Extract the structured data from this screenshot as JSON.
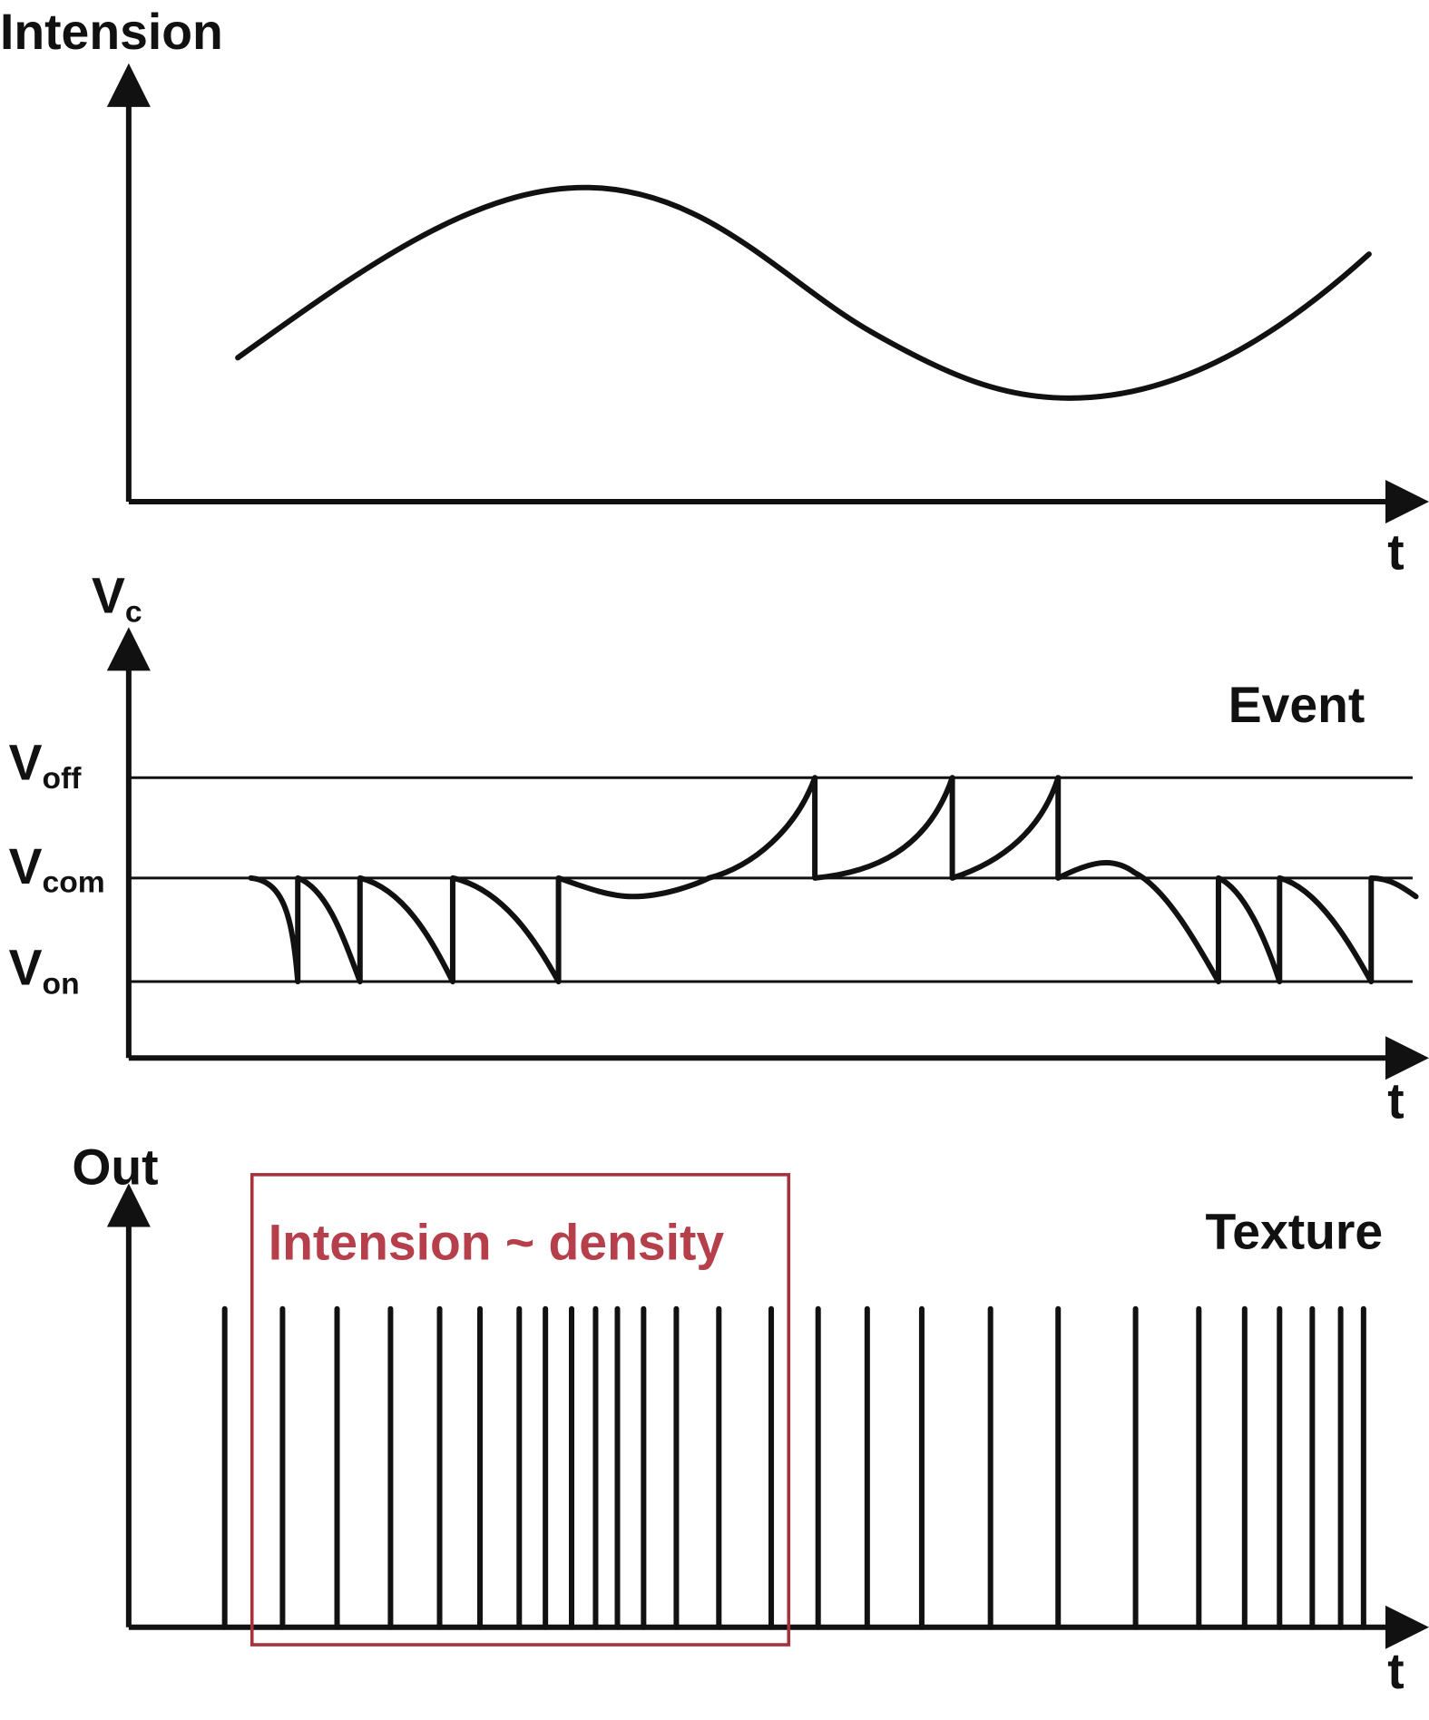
{
  "panels": [
    {
      "y_label": "Intension",
      "x_label": "t"
    },
    {
      "y_label": {
        "main": "V",
        "sub": "c"
      },
      "x_label": "t",
      "title": "Event",
      "levels": [
        {
          "main": "V",
          "sub": "off"
        },
        {
          "main": "V",
          "sub": "com"
        },
        {
          "main": "V",
          "sub": "on"
        }
      ]
    },
    {
      "y_label": "Out",
      "x_label": "t",
      "title": "Texture",
      "annotation": "Intension ~ density"
    }
  ]
}
